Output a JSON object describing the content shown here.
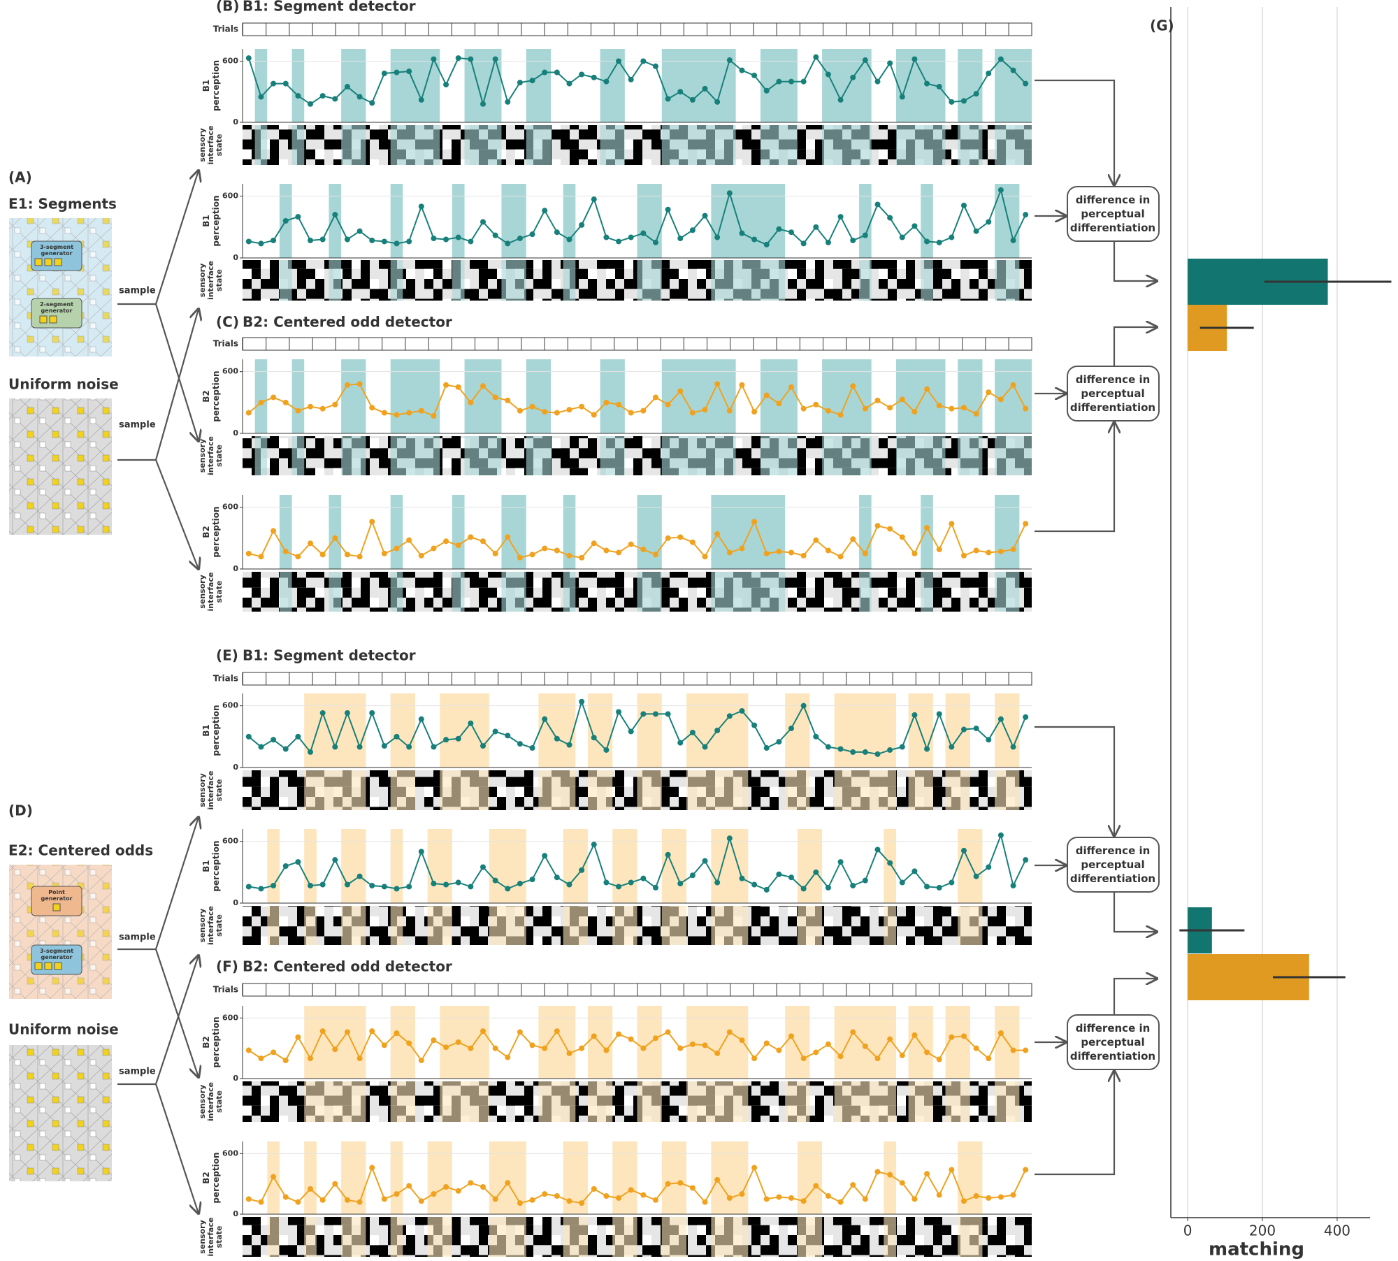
{
  "left": [
    {
      "label": "(A)",
      "title": "E1: Segments",
      "generators": [
        [
          "3-segment",
          "generator"
        ],
        [
          "2-segment",
          "generator"
        ]
      ]
    },
    {
      "label": "(D)",
      "title": "E2: Centered odds",
      "generators": [
        [
          "Point",
          "generator"
        ],
        [
          "3-segment",
          "generator"
        ]
      ]
    }
  ],
  "noise_title": "Uniform noise",
  "sample": "sample",
  "groups": [
    {
      "label": "(B)",
      "title": "B1: Segment detector"
    },
    {
      "label": "(C)",
      "title": "B2: Centered odd detector"
    },
    {
      "label": "(E)",
      "title": "B1: Segment detector"
    },
    {
      "label": "(F)",
      "title": "B2: Centered odd detector"
    }
  ],
  "trials": "Trials",
  "diff_box": [
    "difference in",
    "perceptual",
    "differentiation"
  ],
  "chart_data": [
    {
      "type": "line",
      "ylabel": [
        "B1",
        "perception"
      ],
      "state_label": [
        "sensory",
        "interface",
        "state"
      ],
      "color": "#17807a",
      "shade_color": "#a8d6d6",
      "ylim": [
        0,
        720
      ],
      "yticks": [
        0,
        600
      ],
      "grid": true,
      "values": [
        630,
        250,
        380,
        380,
        260,
        180,
        260,
        230,
        350,
        250,
        190,
        480,
        490,
        500,
        220,
        620,
        370,
        630,
        620,
        180,
        620,
        200,
        390,
        410,
        490,
        490,
        380,
        470,
        440,
        400,
        600,
        420,
        600,
        550,
        230,
        300,
        220,
        330,
        200,
        610,
        510,
        460,
        310,
        400,
        400,
        400,
        640,
        470,
        220,
        440,
        610,
        400,
        580,
        250,
        620,
        380,
        350,
        200,
        210,
        280,
        480,
        620,
        510,
        380
      ],
      "shaded": [
        [
          1,
          1
        ],
        [
          4,
          4
        ],
        [
          8,
          9
        ],
        [
          12,
          15
        ],
        [
          18,
          20
        ],
        [
          23,
          24
        ],
        [
          29,
          30
        ],
        [
          34,
          39
        ],
        [
          42,
          44
        ],
        [
          47,
          50
        ],
        [
          53,
          56
        ],
        [
          58,
          59
        ],
        [
          61,
          63
        ]
      ]
    },
    {
      "type": "line",
      "ylabel": [
        "B1",
        "perception"
      ],
      "state_label": [
        "sensory",
        "interface",
        "state"
      ],
      "color": "#17807a",
      "shade_color": "#a8d6d6",
      "ylim": [
        0,
        720
      ],
      "yticks": [
        0,
        600
      ],
      "grid": true,
      "values": [
        160,
        140,
        170,
        360,
        400,
        170,
        180,
        420,
        180,
        260,
        170,
        160,
        140,
        160,
        500,
        190,
        180,
        200,
        160,
        350,
        220,
        140,
        190,
        230,
        460,
        250,
        180,
        320,
        570,
        200,
        160,
        200,
        240,
        150,
        470,
        190,
        270,
        410,
        200,
        630,
        240,
        180,
        130,
        280,
        250,
        140,
        300,
        150,
        400,
        170,
        220,
        520,
        390,
        200,
        310,
        160,
        150,
        200,
        510,
        260,
        350,
        660,
        170,
        420
      ],
      "shaded": [
        [
          3,
          3
        ],
        [
          7,
          7
        ],
        [
          12,
          12
        ],
        [
          17,
          17
        ],
        [
          21,
          22
        ],
        [
          26,
          26
        ],
        [
          32,
          33
        ],
        [
          38,
          43
        ],
        [
          50,
          50
        ],
        [
          55,
          55
        ],
        [
          61,
          62
        ]
      ]
    },
    {
      "type": "line",
      "ylabel": [
        "B2",
        "perception"
      ],
      "state_label": [
        "sensory",
        "interface",
        "state"
      ],
      "color": "#f0a21e",
      "shade_color": "#a8d6d6",
      "ylim": [
        0,
        720
      ],
      "yticks": [
        0,
        600
      ],
      "grid": true,
      "values": [
        200,
        300,
        350,
        300,
        220,
        260,
        240,
        280,
        470,
        480,
        250,
        200,
        180,
        200,
        220,
        170,
        470,
        450,
        300,
        460,
        350,
        320,
        220,
        260,
        210,
        200,
        230,
        260,
        180,
        300,
        280,
        200,
        220,
        350,
        280,
        410,
        200,
        230,
        480,
        220,
        470,
        210,
        370,
        290,
        450,
        240,
        280,
        220,
        180,
        460,
        240,
        320,
        250,
        330,
        210,
        430,
        270,
        240,
        250,
        190,
        400,
        330,
        470,
        240
      ],
      "shaded": [
        [
          1,
          1
        ],
        [
          4,
          4
        ],
        [
          8,
          9
        ],
        [
          12,
          15
        ],
        [
          18,
          20
        ],
        [
          23,
          24
        ],
        [
          29,
          30
        ],
        [
          34,
          39
        ],
        [
          42,
          44
        ],
        [
          47,
          50
        ],
        [
          53,
          56
        ],
        [
          58,
          59
        ],
        [
          61,
          63
        ]
      ]
    },
    {
      "type": "line",
      "ylabel": [
        "B2",
        "perception"
      ],
      "state_label": [
        "sensory",
        "interface",
        "state"
      ],
      "color": "#f0a21e",
      "shade_color": "#a8d6d6",
      "ylim": [
        0,
        720
      ],
      "yticks": [
        0,
        600
      ],
      "grid": true,
      "values": [
        150,
        120,
        370,
        170,
        120,
        250,
        140,
        300,
        140,
        120,
        460,
        150,
        200,
        280,
        130,
        200,
        270,
        230,
        310,
        270,
        150,
        310,
        110,
        140,
        200,
        180,
        130,
        110,
        250,
        180,
        160,
        240,
        190,
        140,
        300,
        310,
        260,
        120,
        340,
        160,
        200,
        460,
        150,
        170,
        160,
        130,
        280,
        180,
        120,
        290,
        150,
        420,
        390,
        310,
        150,
        400,
        190,
        440,
        130,
        180,
        160,
        170,
        190,
        440
      ],
      "shaded": [
        [
          3,
          3
        ],
        [
          7,
          7
        ],
        [
          12,
          12
        ],
        [
          17,
          17
        ],
        [
          21,
          22
        ],
        [
          26,
          26
        ],
        [
          32,
          33
        ],
        [
          38,
          43
        ],
        [
          50,
          50
        ],
        [
          55,
          55
        ],
        [
          61,
          62
        ]
      ]
    },
    {
      "type": "line",
      "ylabel": [
        "B1",
        "perception"
      ],
      "state_label": [
        "sensory",
        "interface",
        "state"
      ],
      "color": "#17807a",
      "shade_color": "#fde6bd",
      "ylim": [
        0,
        720
      ],
      "yticks": [
        0,
        600
      ],
      "grid": true,
      "values": [
        300,
        200,
        270,
        180,
        300,
        150,
        530,
        200,
        530,
        200,
        530,
        210,
        300,
        200,
        470,
        200,
        270,
        280,
        430,
        210,
        350,
        310,
        230,
        190,
        470,
        280,
        220,
        640,
        290,
        170,
        540,
        350,
        520,
        520,
        520,
        240,
        340,
        200,
        360,
        500,
        550,
        410,
        190,
        250,
        380,
        600,
        300,
        200,
        180,
        150,
        150,
        130,
        170,
        200,
        510,
        180,
        520,
        200,
        370,
        380,
        270,
        470,
        200,
        490
      ],
      "shaded": [
        [
          5,
          9
        ],
        [
          12,
          13
        ],
        [
          16,
          19
        ],
        [
          24,
          26
        ],
        [
          28,
          29
        ],
        [
          32,
          33
        ],
        [
          36,
          40
        ],
        [
          44,
          45
        ],
        [
          48,
          52
        ],
        [
          54,
          55
        ],
        [
          57,
          58
        ],
        [
          61,
          62
        ]
      ]
    },
    {
      "type": "line",
      "ylabel": [
        "B1",
        "perception"
      ],
      "state_label": [
        "sensory",
        "interface",
        "state"
      ],
      "color": "#17807a",
      "shade_color": "#fde6bd",
      "ylim": [
        0,
        720
      ],
      "yticks": [
        0,
        600
      ],
      "grid": true,
      "values": [
        160,
        140,
        170,
        360,
        400,
        170,
        180,
        420,
        180,
        260,
        170,
        160,
        140,
        160,
        500,
        190,
        180,
        200,
        160,
        350,
        220,
        140,
        190,
        230,
        460,
        250,
        180,
        320,
        570,
        200,
        160,
        200,
        240,
        150,
        470,
        190,
        270,
        410,
        200,
        630,
        240,
        180,
        130,
        280,
        250,
        140,
        300,
        150,
        400,
        170,
        220,
        520,
        390,
        200,
        310,
        160,
        150,
        200,
        510,
        260,
        350,
        660,
        170,
        420
      ],
      "shaded": [
        [
          2,
          2
        ],
        [
          5,
          5
        ],
        [
          8,
          9
        ],
        [
          12,
          12
        ],
        [
          15,
          16
        ],
        [
          20,
          22
        ],
        [
          26,
          27
        ],
        [
          30,
          31
        ],
        [
          34,
          35
        ],
        [
          38,
          40
        ],
        [
          45,
          46
        ],
        [
          52,
          52
        ],
        [
          58,
          59
        ]
      ]
    },
    {
      "type": "line",
      "ylabel": [
        "B2",
        "perception"
      ],
      "state_label": [
        "sensory",
        "interface",
        "state"
      ],
      "color": "#f0a21e",
      "shade_color": "#fde6bd",
      "ylim": [
        0,
        720
      ],
      "yticks": [
        0,
        600
      ],
      "grid": true,
      "values": [
        280,
        200,
        260,
        180,
        410,
        200,
        470,
        290,
        460,
        200,
        470,
        330,
        450,
        350,
        180,
        380,
        310,
        360,
        300,
        470,
        300,
        210,
        460,
        330,
        300,
        470,
        250,
        300,
        420,
        280,
        440,
        390,
        300,
        400,
        460,
        300,
        340,
        330,
        250,
        460,
        380,
        200,
        350,
        280,
        420,
        200,
        260,
        340,
        220,
        460,
        320,
        200,
        390,
        230,
        430,
        260,
        190,
        410,
        420,
        300,
        200,
        450,
        280,
        280
      ],
      "shaded": [
        [
          5,
          9
        ],
        [
          12,
          13
        ],
        [
          16,
          19
        ],
        [
          24,
          26
        ],
        [
          28,
          29
        ],
        [
          32,
          33
        ],
        [
          36,
          40
        ],
        [
          44,
          45
        ],
        [
          48,
          52
        ],
        [
          54,
          55
        ],
        [
          57,
          58
        ],
        [
          61,
          62
        ]
      ]
    },
    {
      "type": "line",
      "ylabel": [
        "B2",
        "perception"
      ],
      "state_label": [
        "sensory",
        "interface",
        "state"
      ],
      "color": "#f0a21e",
      "shade_color": "#fde6bd",
      "ylim": [
        0,
        720
      ],
      "yticks": [
        0,
        600
      ],
      "grid": true,
      "values": [
        150,
        120,
        370,
        170,
        120,
        250,
        140,
        300,
        140,
        120,
        460,
        150,
        200,
        280,
        130,
        200,
        270,
        230,
        310,
        270,
        150,
        310,
        110,
        140,
        200,
        180,
        130,
        110,
        250,
        180,
        160,
        240,
        190,
        140,
        300,
        310,
        260,
        120,
        340,
        160,
        200,
        460,
        150,
        170,
        160,
        130,
        280,
        180,
        120,
        290,
        150,
        420,
        390,
        310,
        150,
        400,
        190,
        440,
        130,
        180,
        160,
        170,
        190,
        440
      ],
      "shaded": [
        [
          2,
          2
        ],
        [
          5,
          5
        ],
        [
          8,
          9
        ],
        [
          12,
          12
        ],
        [
          15,
          16
        ],
        [
          20,
          22
        ],
        [
          26,
          27
        ],
        [
          30,
          31
        ],
        [
          34,
          35
        ],
        [
          38,
          40
        ],
        [
          45,
          46
        ],
        [
          52,
          52
        ],
        [
          58,
          59
        ]
      ]
    },
    {
      "type": "bar",
      "label": "(G)",
      "xlabel": "matching",
      "categories": [
        null,
        null
      ],
      "series": [
        {
          "color": "#13756f",
          "values": [
            375,
            65
          ],
          "errors": [
            170,
            87
          ]
        },
        {
          "color": "#e09a22",
          "values": [
            105,
            325
          ],
          "errors": [
            72,
            97
          ]
        }
      ],
      "xlim": [
        -45,
        488
      ],
      "xticks": [
        0,
        200,
        400
      ],
      "grid": true
    }
  ]
}
